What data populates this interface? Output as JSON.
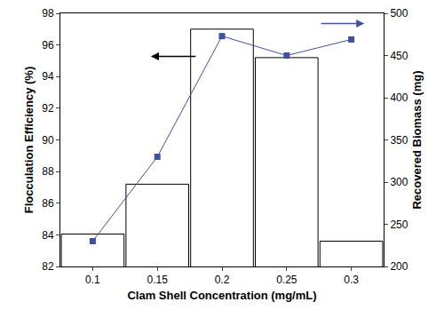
{
  "chart_data": {
    "type": "bar",
    "xlabel": "Clam Shell Concentration (mg/mL)",
    "ylabel": "Flocculation Efficiency (%)",
    "y2label": "Recovered Biomass (mg)",
    "categories": [
      "0.1",
      "0.15",
      "0.2",
      "0.25",
      "0.3"
    ],
    "series": [
      {
        "type": "bar",
        "color": "#ffffff",
        "values": [
          84.05,
          87.2,
          97.0,
          95.2,
          83.6
        ]
      },
      {
        "type": "line",
        "axis": "y2",
        "color": "#3f51a3",
        "marker": "square",
        "line_style": "solid",
        "values": [
          230,
          330,
          473,
          450,
          469
        ]
      }
    ],
    "ylim": [
      82,
      98
    ],
    "yticks": [
      82,
      84,
      86,
      88,
      90,
      92,
      94,
      96,
      98
    ],
    "y2lim": [
      200,
      500
    ],
    "y2ticks": [
      200,
      250,
      300,
      350,
      400,
      450,
      500
    ],
    "grid": false
  }
}
